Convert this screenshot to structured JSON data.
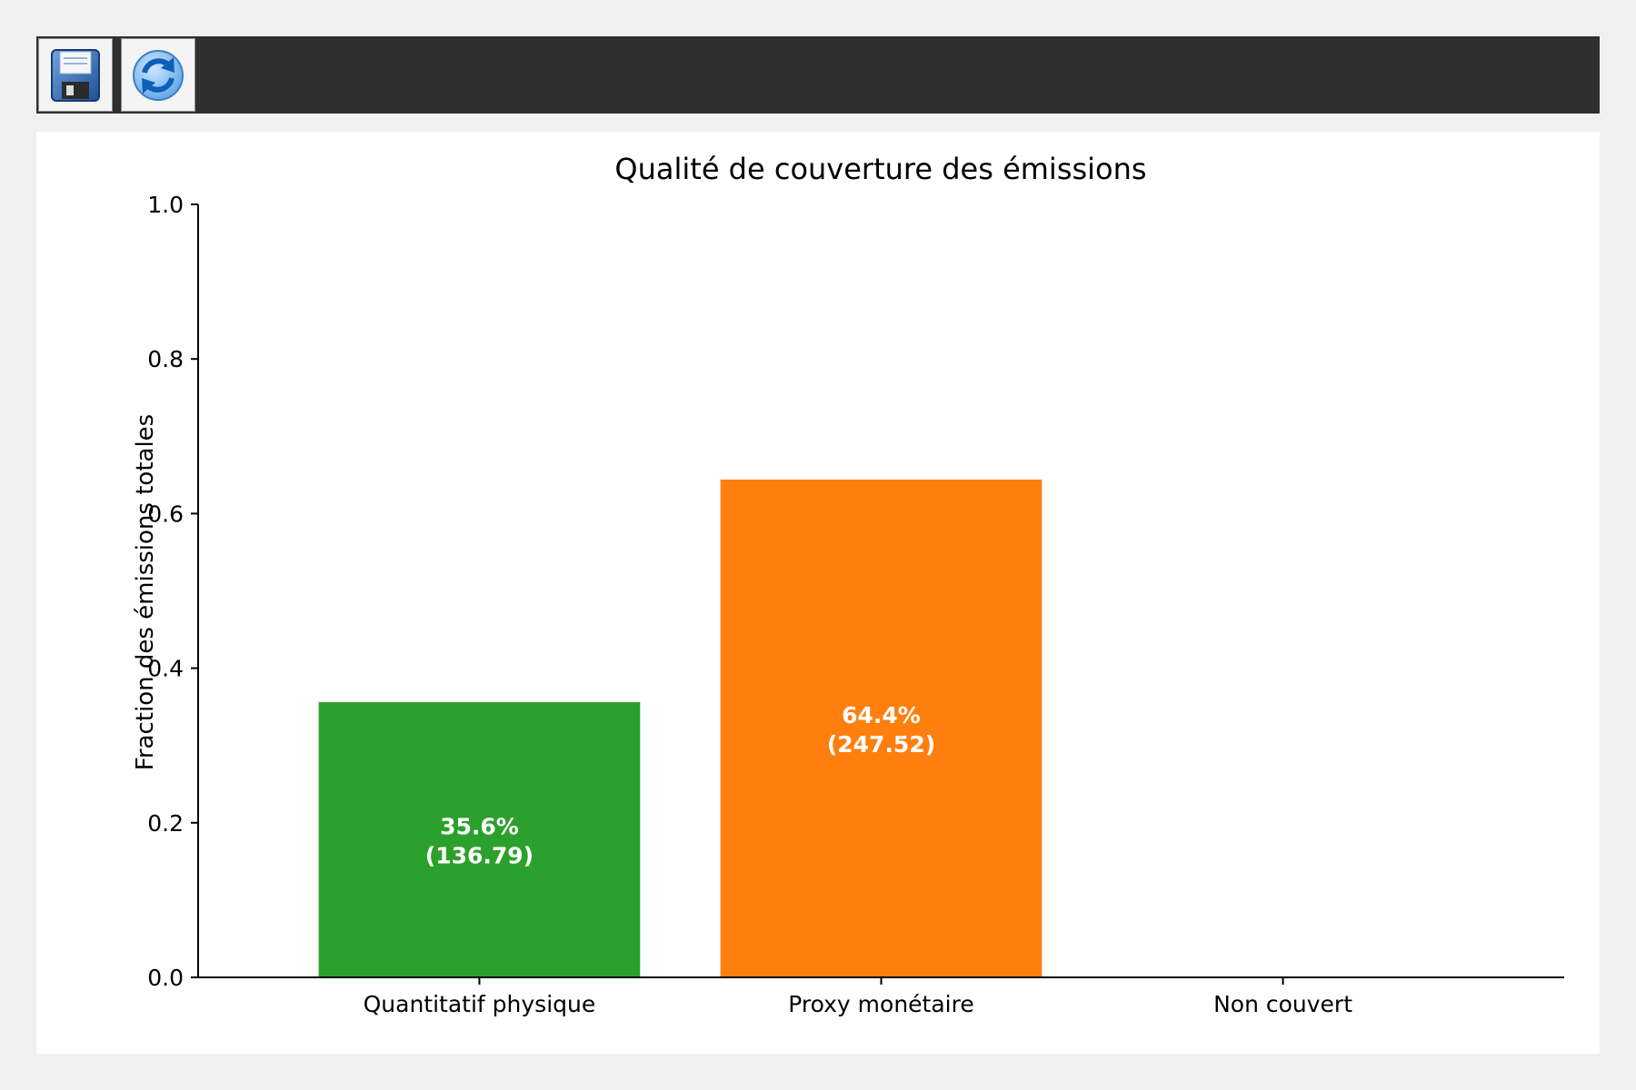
{
  "toolbar": {
    "buttons": [
      {
        "icon": "floppy-disk-icon"
      },
      {
        "icon": "refresh-icon"
      }
    ]
  },
  "chart_data": {
    "type": "bar",
    "title": "Qualité de couverture des émissions",
    "xlabel": "",
    "ylabel": "Fraction des émissions totales",
    "ylim": [
      0,
      1.0
    ],
    "yticks": [
      "0.0",
      "0.2",
      "0.4",
      "0.6",
      "0.8",
      "1.0"
    ],
    "categories": [
      "Quantitatif physique",
      "Proxy monétaire",
      "Non couvert"
    ],
    "values": [
      0.356,
      0.644,
      0.0
    ],
    "labels": [
      [
        "35.6%",
        "(136.79)"
      ],
      [
        "64.4%",
        "(247.52)"
      ],
      null
    ],
    "colors": [
      "#2ca02c",
      "#ff7f0e",
      "#d62728"
    ],
    "grid": false,
    "legend": "none"
  }
}
